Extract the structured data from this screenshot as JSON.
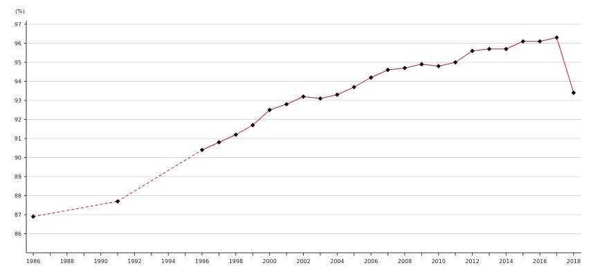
{
  "chart_data": {
    "type": "line",
    "title": "",
    "xlabel": "",
    "ylabel": "",
    "unit_label": "(%)",
    "xlim": [
      1986,
      2018
    ],
    "ylim": [
      85,
      97
    ],
    "x_ticks": [
      1986,
      1988,
      1990,
      1992,
      1994,
      1996,
      1998,
      2000,
      2002,
      2004,
      2006,
      2008,
      2010,
      2012,
      2014,
      2016,
      2018
    ],
    "y_ticks": [
      86,
      87,
      88,
      89,
      90,
      91,
      92,
      93,
      94,
      95,
      96,
      97
    ],
    "grid": "horizontal",
    "legend": "none",
    "colors": {
      "line": "#c8102e",
      "marker": "#000000",
      "grid": "#d9d9d9",
      "axis": "#333333"
    },
    "series": [
      {
        "points": [
          {
            "x": 1986,
            "y": 86.9
          },
          {
            "x": 1991,
            "y": 87.7
          },
          {
            "x": 1996,
            "y": 90.4
          },
          {
            "x": 1997,
            "y": 90.8
          },
          {
            "x": 1998,
            "y": 91.2
          },
          {
            "x": 1999,
            "y": 91.7
          },
          {
            "x": 2000,
            "y": 92.5
          },
          {
            "x": 2001,
            "y": 92.8
          },
          {
            "x": 2002,
            "y": 93.2
          },
          {
            "x": 2003,
            "y": 93.1
          },
          {
            "x": 2004,
            "y": 93.3
          },
          {
            "x": 2005,
            "y": 93.7
          },
          {
            "x": 2006,
            "y": 94.2
          },
          {
            "x": 2007,
            "y": 94.6
          },
          {
            "x": 2008,
            "y": 94.7
          },
          {
            "x": 2009,
            "y": 94.9
          },
          {
            "x": 2010,
            "y": 94.8
          },
          {
            "x": 2011,
            "y": 95.0
          },
          {
            "x": 2012,
            "y": 95.6
          },
          {
            "x": 2013,
            "y": 95.7
          },
          {
            "x": 2014,
            "y": 95.7
          },
          {
            "x": 2015,
            "y": 96.1
          },
          {
            "x": 2016,
            "y": 96.1
          },
          {
            "x": 2017,
            "y": 96.3
          },
          {
            "x": 2018,
            "y": 93.4
          }
        ],
        "dashed_segments": [
          [
            1986,
            1991
          ],
          [
            1991,
            1996
          ]
        ]
      }
    ]
  }
}
